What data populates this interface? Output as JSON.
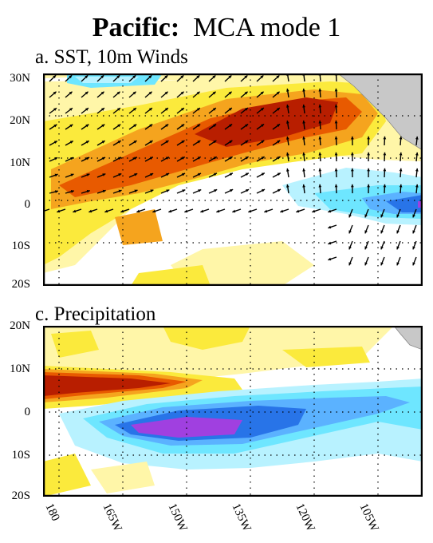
{
  "title": {
    "bold": "Pacific:",
    "rest": "MCA mode 1"
  },
  "panels": [
    {
      "label": "a.  SST, 10m Winds",
      "lat_ticks": [
        "30N",
        "20N",
        "10N",
        "0",
        "10S",
        "20S"
      ]
    },
    {
      "label": "c.  Precipitation",
      "lat_ticks": [
        "20N",
        "10N",
        "0",
        "10S",
        "20S"
      ]
    }
  ],
  "lon_ticks": [
    "180",
    "165W",
    "150W",
    "135W",
    "120W",
    "105W"
  ],
  "colors": {
    "dark_red": "#b81e00",
    "orange_red": "#e85a00",
    "orange": "#f5a41e",
    "yellow": "#fbea3c",
    "light_yellow": "#fff6a8",
    "light_cyan": "#b8f2ff",
    "cyan": "#6ee6ff",
    "light_blue": "#5bb2ff",
    "blue": "#2874e8",
    "purple": "#a040e0",
    "land": "#c8c8c8"
  }
}
